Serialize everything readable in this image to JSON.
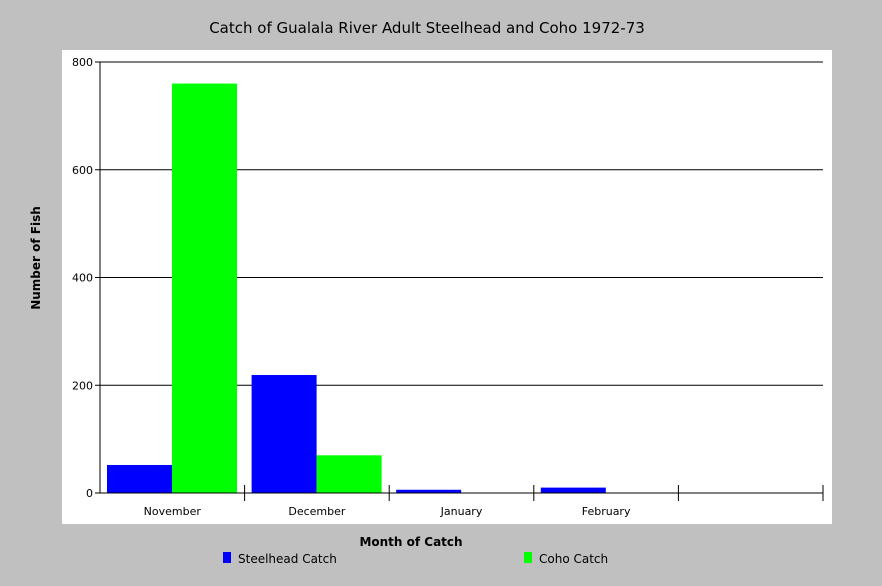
{
  "chart_data": {
    "type": "bar",
    "title": "Catch of Gualala River Adult Steelhead and Coho 1972-73",
    "xlabel": "Month of Catch",
    "ylabel": "Number of Fish",
    "categories": [
      "November",
      "December",
      "January",
      "February",
      ""
    ],
    "series": [
      {
        "name": "Steelhead Catch",
        "color": "#0000ff",
        "values": [
          52,
          219,
          6,
          10,
          0
        ]
      },
      {
        "name": "Coho Catch",
        "color": "#00ff00",
        "values": [
          760,
          70,
          0,
          0,
          0
        ]
      }
    ],
    "ylim": [
      0,
      800
    ],
    "yticks": [
      "0",
      "200",
      "400",
      "600",
      "800"
    ],
    "grid": "horizontal",
    "legend_position": "bottom",
    "colors": {
      "page_background": "#c0c0c0",
      "plot_background": "#ffffff",
      "axis": "#000000"
    }
  }
}
